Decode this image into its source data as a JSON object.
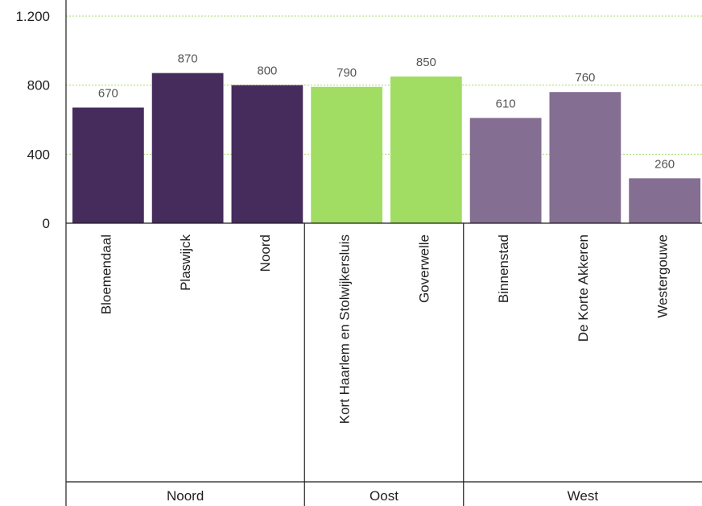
{
  "chart_data": {
    "type": "bar",
    "categories": [
      "Bloemendaal",
      "Plaswijck",
      "Noord",
      "Kort Haarlem en Stolwijkersluis",
      "Goverwelle",
      "Binnenstad",
      "De Korte Akkeren",
      "Westergouwe"
    ],
    "values": [
      670,
      870,
      800,
      790,
      850,
      610,
      760,
      260
    ],
    "data_labels": [
      "670",
      "870",
      "800",
      "790",
      "850",
      "610",
      "760",
      "260"
    ],
    "groups": [
      {
        "label": "Noord",
        "count": 3,
        "color": "#452c5c"
      },
      {
        "label": "Oost",
        "count": 2,
        "color": "#a0dd62"
      },
      {
        "label": "West",
        "count": 3,
        "color": "#846e92"
      }
    ],
    "ylim": [
      0,
      1200
    ],
    "yticks": [
      0,
      400,
      800,
      1200
    ],
    "ytick_labels": [
      "0",
      "400",
      "800",
      "1.200"
    ],
    "grid": true,
    "grid_color": "#a0dd62",
    "axis_color": "#1f1f1f",
    "title": "",
    "xlabel": "",
    "ylabel": ""
  }
}
